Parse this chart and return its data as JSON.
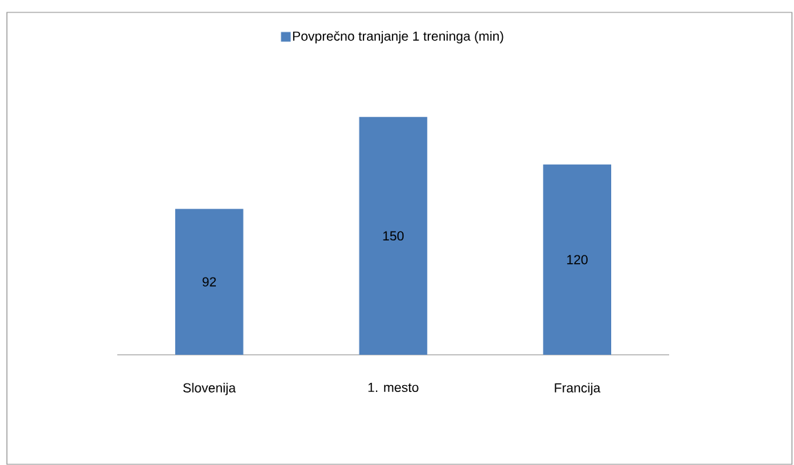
{
  "chart_data": {
    "type": "bar",
    "categories": [
      "Slovenija",
      "1. mesto",
      "Francija"
    ],
    "series": [
      {
        "name": "Povprečno tranjanje 1 treninga (min)",
        "color": "#4f81bd",
        "values": [
          92,
          150,
          120
        ]
      }
    ],
    "data_labels": true,
    "legend": "top"
  }
}
